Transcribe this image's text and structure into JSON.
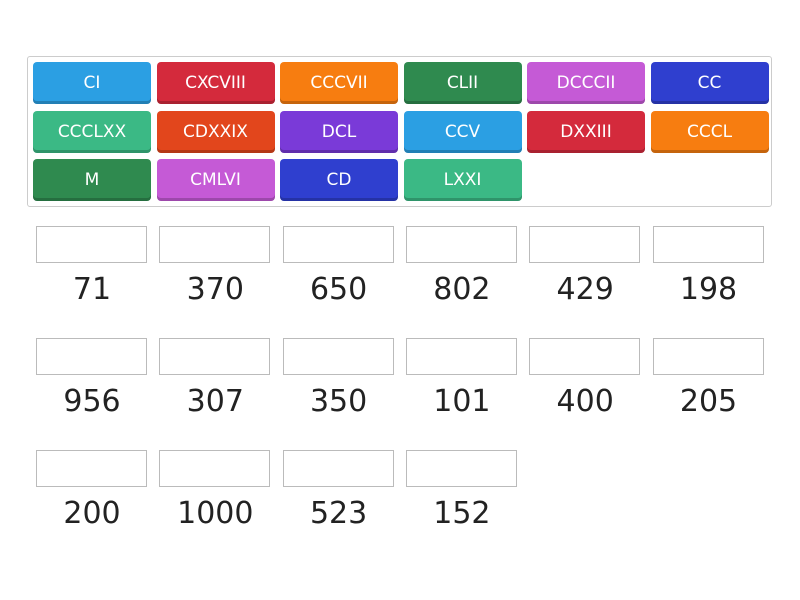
{
  "tiles": [
    {
      "label": "CI",
      "color": "#2b9fe3"
    },
    {
      "label": "CXCVIII",
      "color": "#d42a3c"
    },
    {
      "label": "CCCVII",
      "color": "#f77d10"
    },
    {
      "label": "CLII",
      "color": "#2f8a4f"
    },
    {
      "label": "DCCCII",
      "color": "#c55ad6"
    },
    {
      "label": "CC",
      "color": "#2f3fcf"
    },
    {
      "label": "CCCLXX",
      "color": "#3bb985"
    },
    {
      "label": "CDXXIX",
      "color": "#e2461c"
    },
    {
      "label": "DCL",
      "color": "#7a3ad8"
    },
    {
      "label": "CCV",
      "color": "#2b9fe3"
    },
    {
      "label": "DXXIII",
      "color": "#d42a3c"
    },
    {
      "label": "CCCL",
      "color": "#f77d10"
    },
    {
      "label": "M",
      "color": "#2f8a4f"
    },
    {
      "label": "CMLVI",
      "color": "#c55ad6"
    },
    {
      "label": "CD",
      "color": "#2f3fcf"
    },
    {
      "label": "LXXI",
      "color": "#3bb985"
    }
  ],
  "targets": [
    "71",
    "370",
    "650",
    "802",
    "429",
    "198",
    "956",
    "307",
    "350",
    "101",
    "400",
    "205",
    "200",
    "1000",
    "523",
    "152"
  ]
}
